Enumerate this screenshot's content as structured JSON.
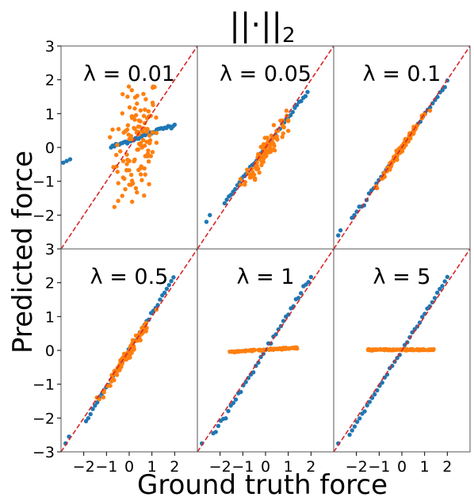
{
  "chart_data": {
    "type": "scatter",
    "title": "||·||",
    "title_subscript": "2",
    "xlabel": "Ground truth force",
    "ylabel": "Predicted force",
    "xlim": [
      -3,
      3
    ],
    "ylim": [
      -3,
      3
    ],
    "xticks": [
      -2,
      -1,
      0,
      1,
      2
    ],
    "yticks": [
      -3,
      -2,
      -1,
      0,
      1,
      2,
      3
    ],
    "colors": {
      "blue": "#1f77b4",
      "orange": "#ff7f0e",
      "reference": "#d62728"
    },
    "reference_line": "y = x (dashed)",
    "grid": false,
    "layout": "2 rows x 3 columns, shared axes",
    "panels": [
      {
        "label": "λ = 0.01",
        "series": [
          {
            "color": "blue",
            "kind": "line",
            "x_range": [
              -0.8,
              2.0
            ],
            "slope": 0.24,
            "intercept": 0.2,
            "extra": [
              [
                -2.9,
                -0.45
              ],
              [
                -2.75,
                -0.4
              ],
              [
                -2.6,
                -0.35
              ]
            ]
          },
          {
            "color": "orange",
            "kind": "cloud",
            "n": 120,
            "x_mean": 0.3,
            "x_sd": 0.5,
            "y_sd": 0.85,
            "slope": 0.6,
            "intercept": -0.1,
            "x_range": [
              -1.0,
              1.2
            ],
            "y_range": [
              -2.2,
              1.8
            ]
          }
        ]
      },
      {
        "label": "λ = 0.05",
        "series": [
          {
            "color": "blue",
            "kind": "line",
            "x_range": [
              -1.8,
              1.85
            ],
            "slope": 0.9,
            "intercept": 0.0,
            "extra": [
              [
                -2.6,
                -2.2
              ],
              [
                -2.45,
                -2.0
              ]
            ]
          },
          {
            "color": "orange",
            "kind": "cloud",
            "n": 100,
            "x_mean": 0.0,
            "x_sd": 0.45,
            "y_sd": 0.18,
            "slope": 0.95,
            "intercept": -0.1,
            "x_range": [
              -1.1,
              1.0
            ],
            "y_range": [
              -1.3,
              1.5
            ]
          }
        ]
      },
      {
        "label": "λ = 0.1",
        "series": [
          {
            "color": "blue",
            "kind": "line",
            "x_range": [
              -2.2,
              2.0
            ],
            "slope": 0.97,
            "intercept": 0.0,
            "extra": [
              [
                -2.8,
                -2.6
              ],
              [
                -2.7,
                -2.45
              ]
            ]
          },
          {
            "color": "orange",
            "kind": "cloud",
            "n": 110,
            "x_mean": 0.0,
            "x_sd": 0.55,
            "y_sd": 0.05,
            "slope": 1.0,
            "intercept": -0.02,
            "x_range": [
              -1.3,
              1.3
            ],
            "y_range": [
              -1.4,
              1.4
            ]
          }
        ]
      },
      {
        "label": "λ = 0.5",
        "series": [
          {
            "color": "blue",
            "kind": "line",
            "x_range": [
              -1.9,
              1.95
            ],
            "slope": 1.1,
            "intercept": 0.0,
            "extra": [
              [
                -2.8,
                -2.75
              ],
              [
                -2.65,
                -2.55
              ]
            ]
          },
          {
            "color": "orange",
            "kind": "cloud",
            "n": 110,
            "x_mean": 0.0,
            "x_sd": 0.5,
            "y_sd": 0.08,
            "slope": 1.0,
            "intercept": -0.05,
            "x_range": [
              -1.5,
              1.2
            ],
            "y_range": [
              -1.6,
              1.3
            ]
          }
        ]
      },
      {
        "label": "λ = 1",
        "series": [
          {
            "color": "blue",
            "kind": "line",
            "x_range": [
              -2.3,
              2.0
            ],
            "slope": 1.08,
            "intercept": 0.0,
            "extra": [
              [
                -2.8,
                -2.75
              ]
            ]
          },
          {
            "color": "orange",
            "kind": "flat",
            "n": 100,
            "x_range": [
              -1.6,
              1.4
            ],
            "slope": 0.04,
            "intercept": 0.02
          }
        ]
      },
      {
        "label": "λ = 5",
        "series": [
          {
            "color": "blue",
            "kind": "line",
            "x_range": [
              -2.3,
              2.0
            ],
            "slope": 1.08,
            "intercept": 0.0,
            "extra": [
              [
                -2.8,
                -2.75
              ]
            ]
          },
          {
            "color": "orange",
            "kind": "flat",
            "n": 100,
            "x_range": [
              -1.5,
              1.4
            ],
            "slope": 0.0,
            "intercept": 0.02
          }
        ]
      }
    ]
  }
}
